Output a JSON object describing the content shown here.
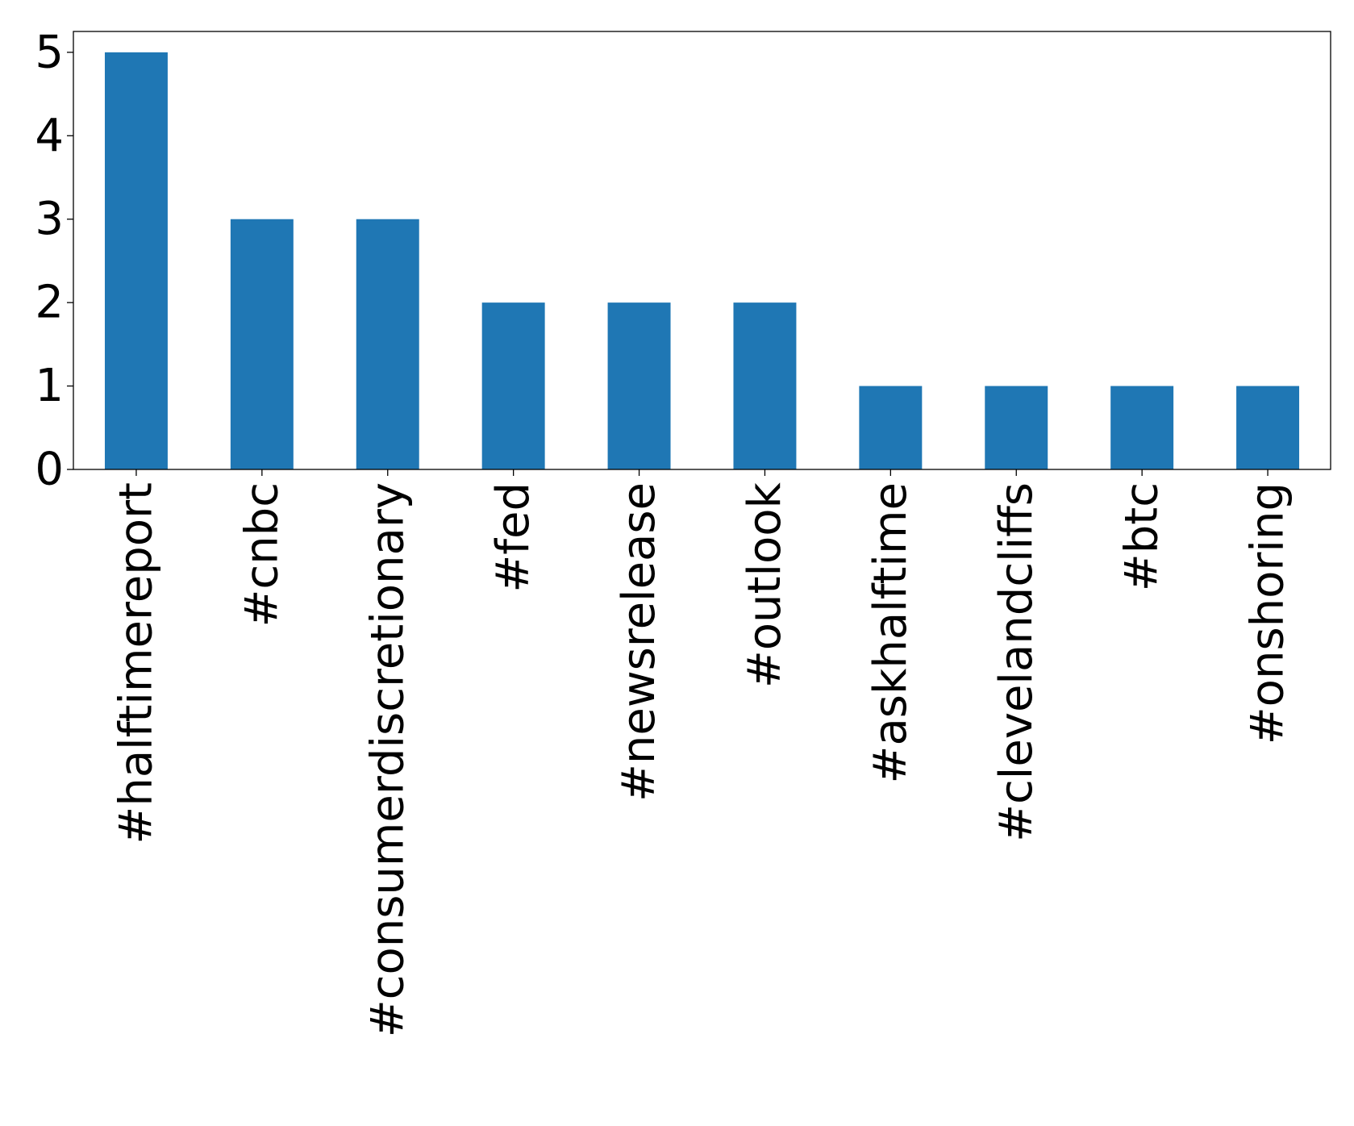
{
  "chart_data": {
    "type": "bar",
    "categories": [
      "#halftimereport",
      "#cnbc",
      "#consumerdiscretionary",
      "#fed",
      "#newsrelease",
      "#outlook",
      "#askhalftime",
      "#clevelandcliffs",
      "#btc",
      "#onshoring"
    ],
    "values": [
      5,
      3,
      3,
      2,
      2,
      2,
      1,
      1,
      1,
      1
    ],
    "title": "",
    "xlabel": "",
    "ylabel": "",
    "ylim": [
      0,
      5.25
    ],
    "yticks": [
      0,
      1,
      2,
      3,
      4,
      5
    ],
    "grid": false,
    "legend": "none",
    "bar_color": "#1f77b4"
  }
}
